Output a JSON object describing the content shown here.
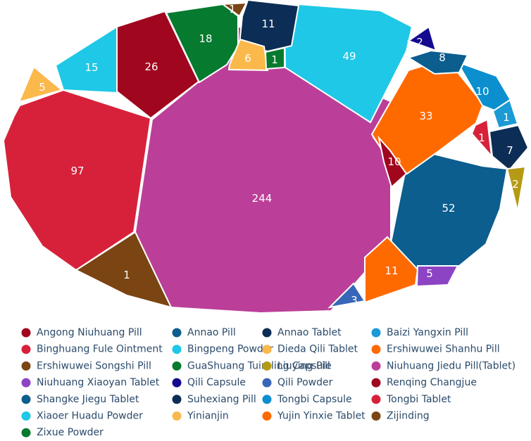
{
  "chart_data": {
    "type": "voronoi-treemap",
    "title": "",
    "legend_position": "bottom",
    "cells": [
      {
        "name": "Niuhuang Jiedu Pill(Tablet)",
        "value": 244,
        "color": "#bb3f98"
      },
      {
        "name": "Binghuang Fule Ointment",
        "value": 97,
        "color": "#d7213a"
      },
      {
        "name": "Shangke Jiegu Tablet",
        "value": 52,
        "color": "#0b5e8e"
      },
      {
        "name": "Xiaoer Huadu Powder",
        "value": 49,
        "color": "#1ec8e6"
      },
      {
        "name": "Yujin Yinxie Tablet",
        "value": 33,
        "color": "#ff6a00"
      },
      {
        "name": "Renqing Changjue",
        "value": 26,
        "color": "#a0061e"
      },
      {
        "name": "Zixue Powder",
        "value": 18,
        "color": "#067a2e"
      },
      {
        "name": "Bingpeng Powder",
        "value": 15,
        "color": "#1ec8e6"
      },
      {
        "name": "Annao Tablet",
        "value": 11,
        "color": "#0c2d55"
      },
      {
        "name": "Ershiwuwei Shanhu Pill",
        "value": 11,
        "color": "#ff6a00"
      },
      {
        "name": "Tongbi Capsule",
        "value": 10,
        "color": "#0b8fcf"
      },
      {
        "name": "Angong Niuhuang Pill",
        "value": 10,
        "color": "#a0061e"
      },
      {
        "name": "Annao Pill",
        "value": 8,
        "color": "#0b5e8e"
      },
      {
        "name": "Suhexiang Pill",
        "value": 7,
        "color": "#0c2d55"
      },
      {
        "name": "Dieda Qili Tablet",
        "value": 6,
        "color": "#fbb84b"
      },
      {
        "name": "Yinianjin",
        "value": 5,
        "color": "#fbb84b"
      },
      {
        "name": "Niuhuang Xiaoyan Tablet",
        "value": 5,
        "color": "#8c44c4"
      },
      {
        "name": "Qili Powder",
        "value": 3,
        "color": "#3866b8"
      },
      {
        "name": "Qili Capsule",
        "value": 2,
        "color": "#130a8f"
      },
      {
        "name": "Liuying Pill",
        "value": 2,
        "color": "#b59a14"
      },
      {
        "name": "Ershiwuwei Songshi Pill",
        "value": 1,
        "color": "#7a4512"
      },
      {
        "name": "Zijinding",
        "value": 1,
        "color": "#7a4512"
      },
      {
        "name": "GuaShuang Tuireling Capsule",
        "value": 1,
        "color": "#067a2e"
      },
      {
        "name": "Baizi Yangxin Pill",
        "value": 1,
        "color": "#1b9ad6"
      },
      {
        "name": "Tongbi Tablet",
        "value": 1,
        "color": "#d7213a"
      }
    ],
    "legend": [
      {
        "name": "Angong Niuhuang Pill",
        "color": "#a0061e"
      },
      {
        "name": "Annao Pill",
        "color": "#0b5e8e"
      },
      {
        "name": "Annao Tablet",
        "color": "#0c2d55"
      },
      {
        "name": "Baizi Yangxin Pill",
        "color": "#1b9ad6"
      },
      {
        "name": "Binghuang Fule Ointment",
        "color": "#d7213a"
      },
      {
        "name": "Bingpeng Powder",
        "color": "#1ec8e6"
      },
      {
        "name": "Dieda Qili Tablet",
        "color": "#fbb84b"
      },
      {
        "name": "Ershiwuwei Shanhu Pill",
        "color": "#ff6a00"
      },
      {
        "name": "Ershiwuwei Songshi Pill",
        "color": "#7a4512"
      },
      {
        "name": "GuaShuang Tuireling Capsule",
        "color": "#067a2e"
      },
      {
        "name": "Liuying Pill",
        "color": "#b59a14"
      },
      {
        "name": "Niuhuang Jiedu Pill(Tablet)",
        "color": "#bb3f98"
      },
      {
        "name": "Niuhuang Xiaoyan Tablet",
        "color": "#8c44c4"
      },
      {
        "name": "Qili Capsule",
        "color": "#130a8f"
      },
      {
        "name": "Qili Powder",
        "color": "#3866b8"
      },
      {
        "name": "Renqing Changjue",
        "color": "#a0061e"
      },
      {
        "name": "Shangke Jiegu Tablet",
        "color": "#0b5e8e"
      },
      {
        "name": "Suhexiang Pill",
        "color": "#0c2d55"
      },
      {
        "name": "Tongbi Capsule",
        "color": "#0b8fcf"
      },
      {
        "name": "Tongbi Tablet",
        "color": "#d7213a"
      },
      {
        "name": "Xiaoer Huadu Powder",
        "color": "#1ec8e6"
      },
      {
        "name": "Yinianjin",
        "color": "#fbb84b"
      },
      {
        "name": "Yujin Yinxie Tablet",
        "color": "#ff6a00"
      },
      {
        "name": "Zijinding",
        "color": "#7a4512"
      },
      {
        "name": "Zixue Powder",
        "color": "#067a2e"
      }
    ]
  }
}
